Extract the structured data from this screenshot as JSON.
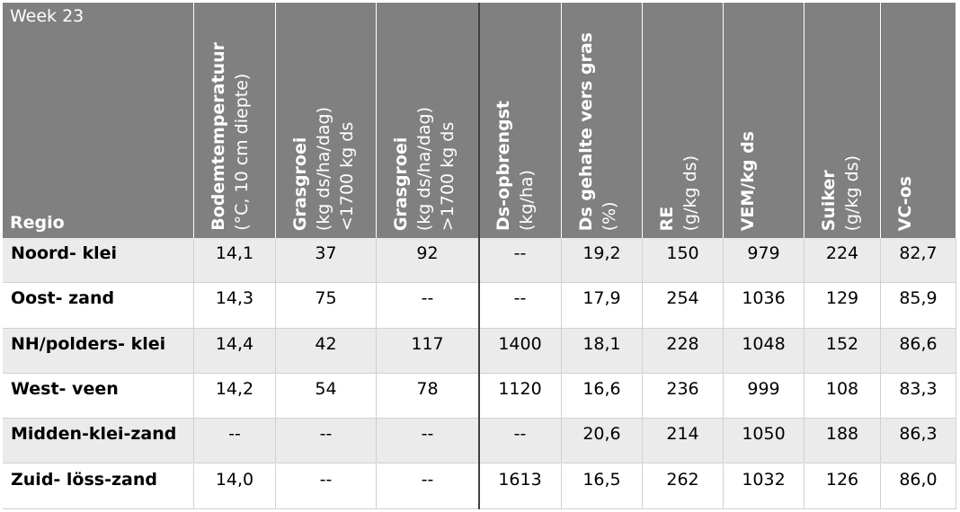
{
  "header": {
    "week": "Week 23",
    "region_label": "Regio",
    "columns": [
      {
        "title": "Bodemtemperatuur",
        "lines": [
          "(°C, 10 cm diepte)"
        ]
      },
      {
        "title": "Grasgroei",
        "lines": [
          "(kg ds/ha/dag)",
          "<1700 kg ds"
        ]
      },
      {
        "title": "Grasgroei",
        "lines": [
          "(kg ds/ha/dag)",
          ">1700 kg ds"
        ]
      },
      {
        "title": "Ds-opbrengst",
        "lines": [
          "(kg/ha)"
        ]
      },
      {
        "title": "Ds gehalte vers gras",
        "lines": [
          "(%)"
        ]
      },
      {
        "title": "RE",
        "lines": [
          "(g/kg ds)"
        ]
      },
      {
        "title": "VEM/kg ds",
        "lines": []
      },
      {
        "title": "Suiker",
        "lines": [
          "(g/kg ds)"
        ]
      },
      {
        "title": "VC-os",
        "lines": []
      }
    ]
  },
  "table": {
    "rows": [
      {
        "region": "Noord- klei",
        "values": [
          "14,1",
          "37",
          "92",
          "--",
          "19,2",
          "150",
          "979",
          "224",
          "82,7"
        ]
      },
      {
        "region": "Oost- zand",
        "values": [
          "14,3",
          "75",
          "--",
          "--",
          "17,9",
          "254",
          "1036",
          "129",
          "85,9"
        ]
      },
      {
        "region": "NH/polders- klei",
        "values": [
          "14,4",
          "42",
          "117",
          "1400",
          "18,1",
          "228",
          "1048",
          "152",
          "86,6"
        ]
      },
      {
        "region": "West- veen",
        "values": [
          "14,2",
          "54",
          "78",
          "1120",
          "16,6",
          "236",
          "999",
          "108",
          "83,3"
        ]
      },
      {
        "region": "Midden-klei-zand",
        "values": [
          "--",
          "--",
          "--",
          "--",
          "20,6",
          "214",
          "1050",
          "188",
          "86,3"
        ]
      },
      {
        "region": "Zuid- löss-zand",
        "values": [
          "14,0",
          "--",
          "--",
          "1613",
          "16,5",
          "262",
          "1032",
          "126",
          "86,0"
        ]
      }
    ]
  }
}
